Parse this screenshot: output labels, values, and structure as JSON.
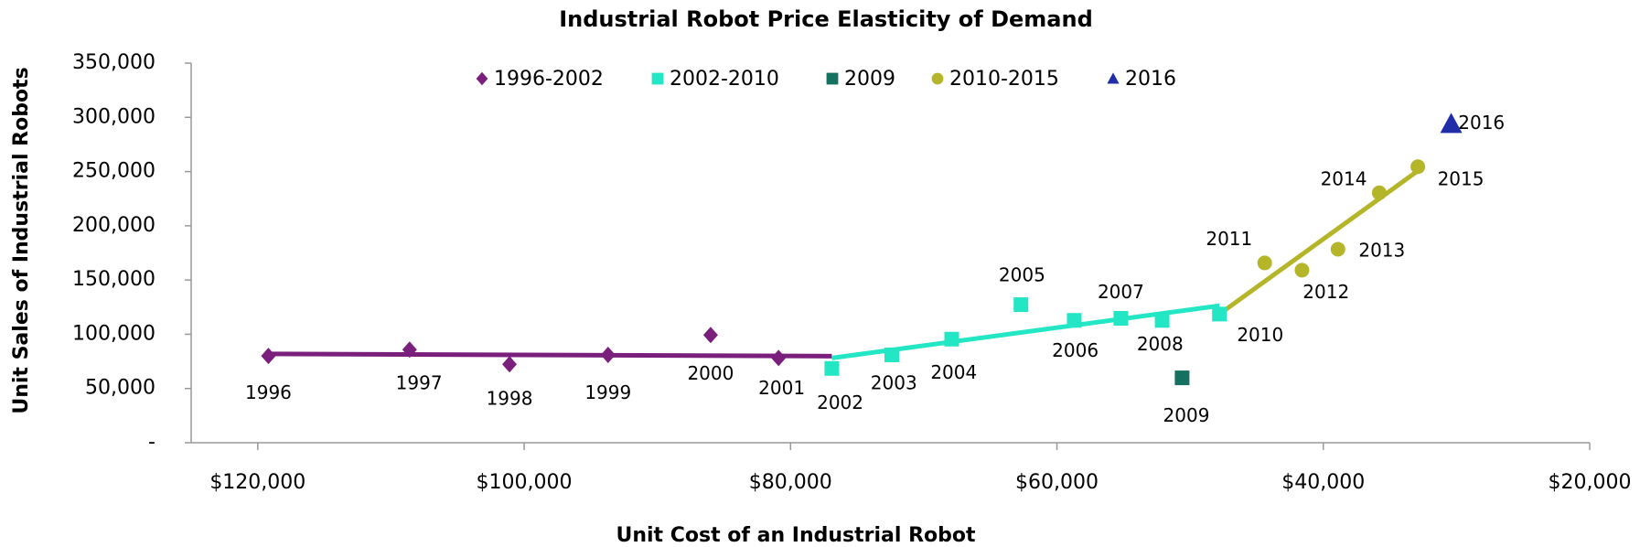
{
  "chart_data": {
    "type": "scatter",
    "title": "Industrial Robot Price Elasticity of Demand",
    "x_label": "Unit Cost of an Industrial Robot",
    "y_label": "Unit Sales of Industrial Robots",
    "xlim": [
      125000,
      20000
    ],
    "ylim": [
      0,
      350000
    ],
    "xticks": [
      {
        "value": 120000,
        "label": "$120,000"
      },
      {
        "value": 100000,
        "label": "$100,000"
      },
      {
        "value": 80000,
        "label": "$80,000"
      },
      {
        "value": 60000,
        "label": "$60,000"
      },
      {
        "value": 40000,
        "label": "$40,000"
      },
      {
        "value": 20000,
        "label": "$20,000"
      }
    ],
    "yticks": [
      {
        "value": 0,
        "label": "-"
      },
      {
        "value": 50000,
        "label": "50,000"
      },
      {
        "value": 100000,
        "label": "100,000"
      },
      {
        "value": 150000,
        "label": "150,000"
      },
      {
        "value": 200000,
        "label": "200,000"
      },
      {
        "value": 250000,
        "label": "250,000"
      },
      {
        "value": 300000,
        "label": "300,000"
      },
      {
        "value": 350000,
        "label": "350,000"
      }
    ],
    "grid": false,
    "series": [
      {
        "name": "1996-2002",
        "color": "#7b1f7c",
        "marker": "diamond",
        "x": [
          119200,
          108600,
          101100,
          93700,
          86000,
          80900
        ],
        "values": [
          80000,
          85800,
          72300,
          81000,
          99300,
          78100
        ],
        "labels": [
          "1996",
          "1997",
          "1998",
          "1999",
          "2000",
          "2001"
        ],
        "trendline": {
          "x": [
            119200,
            76900
          ],
          "y": [
            81900,
            79800
          ]
        }
      },
      {
        "name": "2002-2010",
        "color": "#22e6c4",
        "marker": "square",
        "x": [
          76900,
          72400,
          67900,
          62700,
          58700,
          55200,
          52100,
          47800
        ],
        "values": [
          68500,
          81000,
          95500,
          127300,
          112800,
          114700,
          112800,
          118600
        ],
        "labels": [
          "2002",
          "2003",
          "2004",
          "2005",
          "2006",
          "2007",
          "2008",
          "2010"
        ],
        "trendline": {
          "x": [
            76900,
            47800
          ],
          "y": [
            78100,
            126300
          ]
        }
      },
      {
        "name": "2009",
        "color": "#16705f",
        "marker": "square",
        "x": [
          50600
        ],
        "values": [
          59800
        ],
        "labels": [
          "2009"
        ]
      },
      {
        "name": "2010-2015",
        "color": "#b5b52a",
        "marker": "circle",
        "x": [
          44400,
          41600,
          38900,
          35800,
          32900
        ],
        "values": [
          165800,
          159100,
          178400,
          230400,
          254500
        ],
        "labels": [
          "2011",
          "2012",
          "2013",
          "2014",
          "2015"
        ],
        "trendline": {
          "x": [
            47800,
            32900
          ],
          "y": [
            118600,
            250700
          ]
        }
      },
      {
        "name": "2016",
        "color": "#1f2ea8",
        "marker": "triangle",
        "x": [
          30400
        ],
        "values": [
          294000
        ],
        "labels": [
          "2016"
        ]
      }
    ]
  }
}
